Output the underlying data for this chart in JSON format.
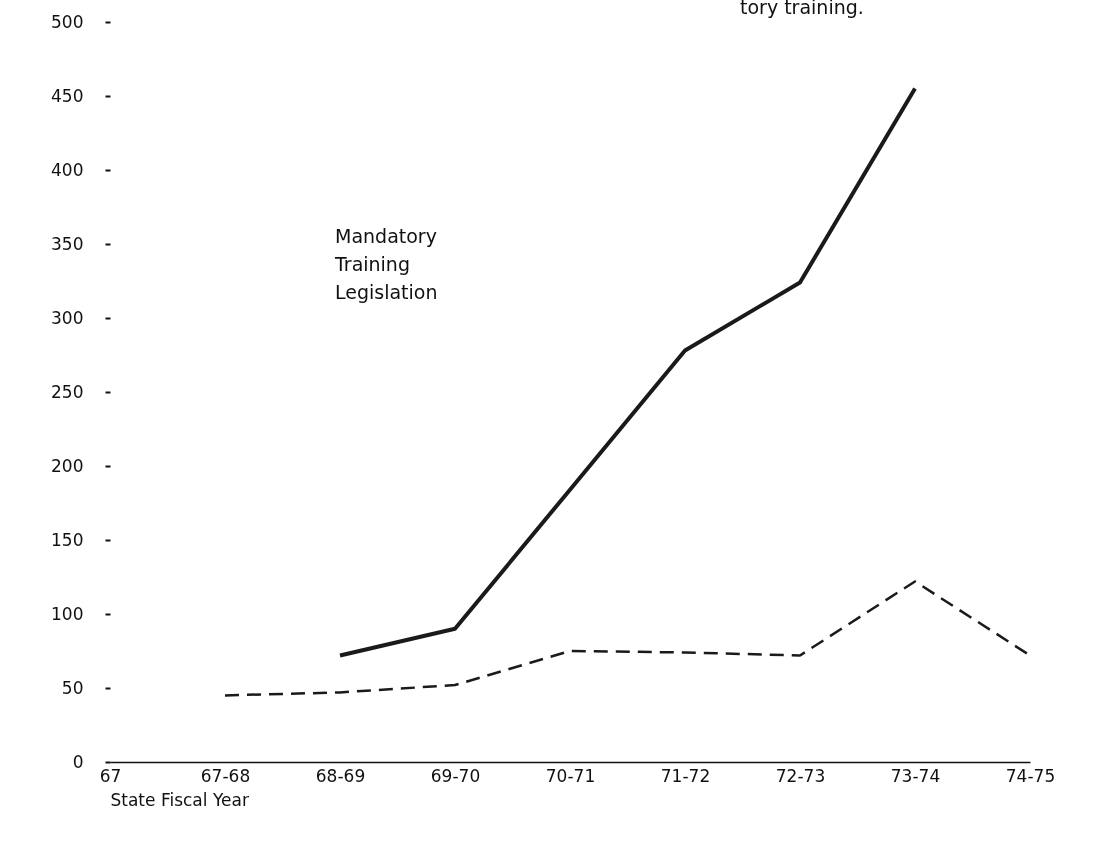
{
  "chart_data": {
    "type": "line",
    "xlabel": "State Fiscal Year",
    "categories": [
      "67",
      "67-68",
      "68-69",
      "69-70",
      "70-71",
      "71-72",
      "72-73",
      "73-74",
      "74-75"
    ],
    "ylim": [
      0,
      500
    ],
    "yticks": [
      0,
      50,
      100,
      150,
      200,
      250,
      300,
      350,
      400,
      450,
      500
    ],
    "series": [
      {
        "color": "#1a1a1a",
        "line_style": "solid",
        "values": [
          null,
          null,
          72,
          90,
          184,
          278,
          324,
          455,
          null
        ]
      },
      {
        "color": "#1a1a1a",
        "line_style": "dashed",
        "values": [
          null,
          45,
          47,
          52,
          75,
          74,
          72,
          122,
          72
        ]
      }
    ],
    "annotations": [
      "tory training.",
      "Mandatory\nTraining\nLegislation"
    ]
  }
}
